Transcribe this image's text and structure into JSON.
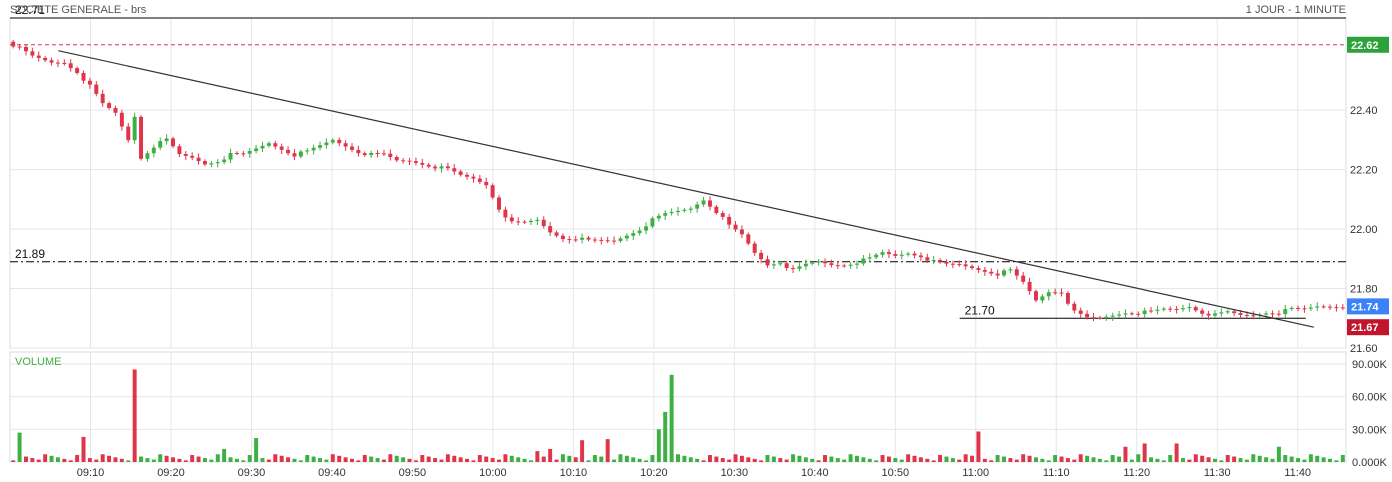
{
  "header": {
    "title": "SOCIETE GENERALE - brs",
    "period": "1 JOUR - 1 MINUTE"
  },
  "colors": {
    "up": "#3cb043",
    "down": "#e0344a",
    "grid": "#e6e6e6",
    "refline": "#000000",
    "prev_close": "#e0344a",
    "last_badge": "#3b82f6",
    "low_badge": "#c0152d",
    "prev_badge": "#2ea23a",
    "volume_label": "#3cb043"
  },
  "chart_data": [
    {
      "type": "candlestick",
      "title": "SOCIETE GENERALE - brs",
      "x_tick_labels": [
        "09:10",
        "09:20",
        "09:30",
        "09:40",
        "09:50",
        "10:00",
        "10:10",
        "10:20",
        "10:30",
        "10:40",
        "10:50",
        "11:00",
        "11:10",
        "11:20",
        "11:30",
        "11:40"
      ],
      "y_tick_labels": [
        "22.40",
        "22.20",
        "22.00",
        "21.80",
        "21.60"
      ],
      "ylim": [
        21.6,
        22.71
      ],
      "x_start": "09:00",
      "x_end": "11:45",
      "level_lines": [
        {
          "label": "22.71",
          "value": 22.71,
          "style": "solid"
        },
        {
          "label": "21.89",
          "value": 21.89,
          "style": "dash-dot"
        },
        {
          "label": "21.70",
          "value": 21.7,
          "style": "solid",
          "from": "10:58",
          "to": "11:41"
        }
      ],
      "prev_close": 22.62,
      "trendline": [
        {
          "t": 9.1,
          "v": 22.6
        },
        {
          "t": 11.7,
          "v": 21.67
        }
      ],
      "badges": [
        {
          "label": "22.62",
          "value": 22.62,
          "kind": "prev"
        },
        {
          "label": "21.74",
          "value": 21.74,
          "kind": "last"
        },
        {
          "label": "21.67",
          "value": 21.67,
          "kind": "low"
        }
      ],
      "ohlc_anchors": [
        [
          0,
          22.62
        ],
        [
          3,
          22.58
        ],
        [
          6,
          22.56
        ],
        [
          8,
          22.56
        ],
        [
          10,
          22.53
        ],
        [
          12,
          22.48
        ],
        [
          14,
          22.42
        ],
        [
          16,
          22.39
        ],
        [
          18,
          22.3
        ],
        [
          19,
          22.38
        ],
        [
          20,
          22.24
        ],
        [
          21,
          22.26
        ],
        [
          22,
          22.28
        ],
        [
          24,
          22.3
        ],
        [
          26,
          22.25
        ],
        [
          28,
          22.24
        ],
        [
          30,
          22.22
        ],
        [
          32,
          22.23
        ],
        [
          34,
          22.25
        ],
        [
          36,
          22.25
        ],
        [
          38,
          22.27
        ],
        [
          40,
          22.29
        ],
        [
          42,
          22.27
        ],
        [
          44,
          22.25
        ],
        [
          46,
          22.26
        ],
        [
          48,
          22.28
        ],
        [
          50,
          22.3
        ],
        [
          52,
          22.28
        ],
        [
          54,
          22.26
        ],
        [
          56,
          22.25
        ],
        [
          58,
          22.25
        ],
        [
          60,
          22.23
        ],
        [
          62,
          22.23
        ],
        [
          64,
          22.22
        ],
        [
          66,
          22.21
        ],
        [
          68,
          22.2
        ],
        [
          70,
          22.18
        ],
        [
          72,
          22.17
        ],
        [
          74,
          22.15
        ],
        [
          76,
          22.07
        ],
        [
          78,
          22.02
        ],
        [
          80,
          22.02
        ],
        [
          82,
          22.03
        ],
        [
          84,
          21.99
        ],
        [
          86,
          21.97
        ],
        [
          88,
          21.97
        ],
        [
          90,
          21.96
        ],
        [
          92,
          21.96
        ],
        [
          94,
          21.96
        ],
        [
          96,
          21.98
        ],
        [
          98,
          22.0
        ],
        [
          100,
          22.03
        ],
        [
          102,
          22.05
        ],
        [
          104,
          22.06
        ],
        [
          106,
          22.07
        ],
        [
          108,
          22.1
        ],
        [
          110,
          22.06
        ],
        [
          112,
          22.01
        ],
        [
          114,
          21.98
        ],
        [
          116,
          21.92
        ],
        [
          118,
          21.88
        ],
        [
          120,
          21.89
        ],
        [
          122,
          21.86
        ],
        [
          124,
          21.88
        ],
        [
          126,
          21.89
        ],
        [
          128,
          21.88
        ],
        [
          130,
          21.88
        ],
        [
          132,
          21.89
        ],
        [
          134,
          21.9
        ],
        [
          136,
          21.92
        ],
        [
          138,
          21.91
        ],
        [
          140,
          21.92
        ],
        [
          142,
          21.91
        ],
        [
          144,
          21.89
        ],
        [
          146,
          21.88
        ],
        [
          148,
          21.88
        ],
        [
          150,
          21.87
        ],
        [
          152,
          21.86
        ],
        [
          154,
          21.85
        ],
        [
          156,
          21.86
        ],
        [
          158,
          21.82
        ],
        [
          160,
          21.76
        ],
        [
          162,
          21.79
        ],
        [
          164,
          21.79
        ],
        [
          166,
          21.72
        ],
        [
          168,
          21.7
        ],
        [
          170,
          21.7
        ],
        [
          172,
          21.71
        ],
        [
          174,
          21.72
        ],
        [
          176,
          21.72
        ],
        [
          178,
          21.72
        ],
        [
          180,
          21.73
        ],
        [
          182,
          21.73
        ],
        [
          184,
          21.74
        ],
        [
          186,
          21.72
        ],
        [
          188,
          21.71
        ],
        [
          190,
          21.72
        ],
        [
          192,
          21.71
        ],
        [
          194,
          21.71
        ],
        [
          196,
          21.72
        ],
        [
          198,
          21.72
        ],
        [
          200,
          21.73
        ],
        [
          202,
          21.73
        ],
        [
          204,
          21.74
        ],
        [
          206,
          21.74
        ],
        [
          208,
          21.74
        ]
      ],
      "volume": {
        "label": "VOLUME",
        "y_tick_labels": [
          "90.00K",
          "60.00K",
          "30.00K",
          "0.000K"
        ],
        "ylim": [
          0,
          90000
        ],
        "spikes": [
          {
            "t": "09:01",
            "v": 27000,
            "dir": "up"
          },
          {
            "t": "09:09",
            "v": 23000,
            "dir": "down"
          },
          {
            "t": "09:15",
            "v": 85000,
            "dir": "down"
          },
          {
            "t": "09:26",
            "v": 12000,
            "dir": "up"
          },
          {
            "t": "09:30",
            "v": 22000,
            "dir": "up"
          },
          {
            "t": "10:05",
            "v": 10000,
            "dir": "down"
          },
          {
            "t": "10:07",
            "v": 12000,
            "dir": "down"
          },
          {
            "t": "10:11",
            "v": 20000,
            "dir": "down"
          },
          {
            "t": "10:14",
            "v": 21000,
            "dir": "down"
          },
          {
            "t": "10:20",
            "v": 30000,
            "dir": "up"
          },
          {
            "t": "10:21",
            "v": 46000,
            "dir": "up"
          },
          {
            "t": "10:22",
            "v": 80000,
            "dir": "up"
          },
          {
            "t": "11:00",
            "v": 28000,
            "dir": "down"
          },
          {
            "t": "11:18",
            "v": 14000,
            "dir": "down"
          },
          {
            "t": "11:21",
            "v": 17000,
            "dir": "down"
          },
          {
            "t": "11:25",
            "v": 17000,
            "dir": "down"
          },
          {
            "t": "11:37",
            "v": 14000,
            "dir": "up"
          }
        ]
      }
    }
  ]
}
